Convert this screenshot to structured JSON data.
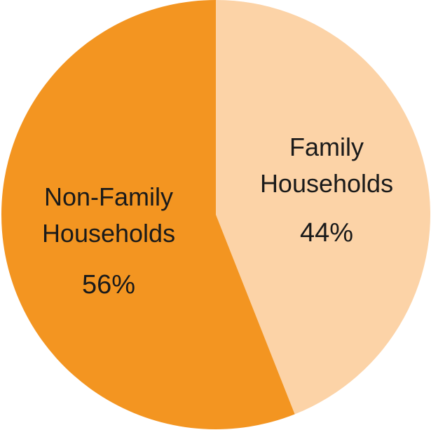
{
  "chart_data": {
    "type": "pie",
    "start_angle_deg": 0,
    "direction": "clockwise",
    "slices": [
      {
        "label_lines": [
          "Family",
          "Households"
        ],
        "value": 44,
        "value_label": "44%",
        "color": "#FCD3A7"
      },
      {
        "label_lines": [
          "Non-Family",
          "Households"
        ],
        "value": 56,
        "value_label": "56%",
        "color": "#F39521"
      }
    ],
    "legend": "none"
  }
}
